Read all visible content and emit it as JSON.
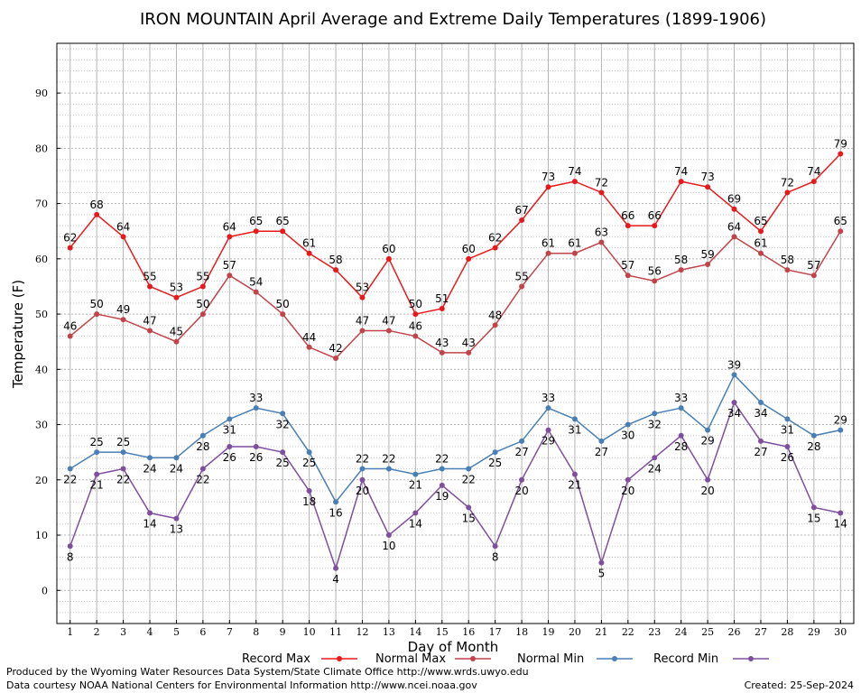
{
  "chart_data": {
    "type": "line",
    "title": "IRON MOUNTAIN April Average and Extreme Daily Temperatures (1899-1906)",
    "xlabel": "Day of Month",
    "ylabel": "Temperature (F)",
    "x": [
      1,
      2,
      3,
      4,
      5,
      6,
      7,
      8,
      9,
      10,
      11,
      12,
      13,
      14,
      15,
      16,
      17,
      18,
      19,
      20,
      21,
      22,
      23,
      24,
      25,
      26,
      27,
      28,
      29,
      30
    ],
    "xlim": [
      0.5,
      30.5
    ],
    "ylim": [
      -6,
      99
    ],
    "yticks": [
      0,
      10,
      20,
      30,
      40,
      50,
      60,
      70,
      80,
      90
    ],
    "grid": true,
    "legend_position": "bottom",
    "series": [
      {
        "name": "Record Max",
        "color": "#e8191c",
        "label_pos": "above",
        "values": [
          62,
          68,
          64,
          55,
          53,
          55,
          64,
          65,
          65,
          61,
          58,
          53,
          60,
          50,
          51,
          60,
          62,
          67,
          73,
          74,
          72,
          66,
          66,
          74,
          73,
          69,
          65,
          72,
          74,
          79
        ]
      },
      {
        "name": "Normal Max",
        "color": "#c0444a",
        "label_pos": "above",
        "values": [
          46,
          50,
          49,
          47,
          45,
          50,
          57,
          54,
          50,
          44,
          42,
          47,
          47,
          46,
          43,
          43,
          48,
          55,
          61,
          61,
          63,
          57,
          56,
          58,
          59,
          64,
          61,
          58,
          57,
          65
        ]
      },
      {
        "name": "Normal Min",
        "color": "#4a7fb5",
        "label_pos": "mixed",
        "values": [
          22,
          25,
          25,
          24,
          24,
          28,
          31,
          33,
          32,
          25,
          16,
          22,
          22,
          21,
          22,
          22,
          25,
          27,
          33,
          31,
          27,
          30,
          32,
          33,
          29,
          39,
          34,
          31,
          28,
          29
        ]
      },
      {
        "name": "Record Min",
        "color": "#7f4f9e",
        "label_pos": "below",
        "values": [
          8,
          21,
          22,
          14,
          13,
          22,
          26,
          26,
          25,
          18,
          4,
          20,
          10,
          14,
          19,
          15,
          8,
          20,
          29,
          21,
          5,
          20,
          24,
          28,
          20,
          34,
          27,
          26,
          15,
          14
        ]
      }
    ]
  },
  "footer": {
    "produced_by": "Produced by the Wyoming Water Resources Data System/State Climate Office http://www.wrds.uwyo.edu",
    "courtesy": "Data courtesy NOAA National Centers for Environmental Information http://www.ncei.noaa.gov",
    "created": "Created:  25-Sep-2024"
  }
}
